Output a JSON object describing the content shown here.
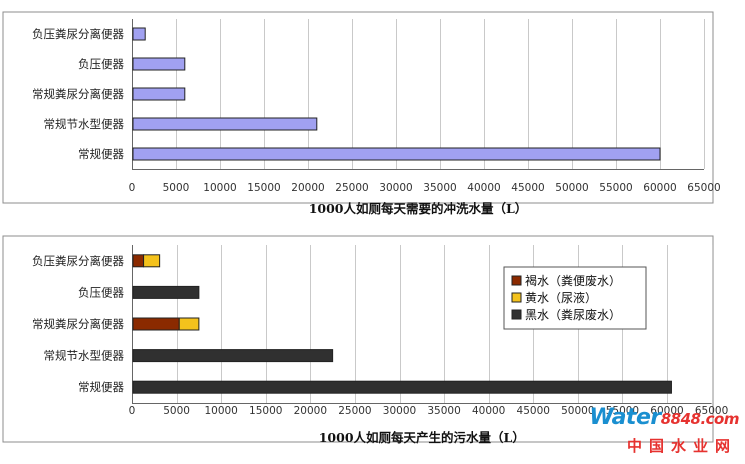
{
  "colors": {
    "bar_top": "#a1a1f1",
    "brown": "#8b2a00",
    "yellow": "#f4c21c",
    "black": "#303030",
    "frame": "#8c8c8c",
    "grid": "#c9c9c9"
  },
  "chart_data": [
    {
      "type": "bar",
      "orientation": "horizontal",
      "categories": [
        "负压粪尿分离便器",
        "负压便器",
        "常规粪尿分离便器",
        "常规节水型便器",
        "常规便器"
      ],
      "series": [
        {
          "values": [
            1500,
            6000,
            6000,
            21000,
            60000
          ]
        }
      ],
      "xlabel": "1000人如厕每天需要的冲洗水量（L）",
      "xlim": [
        0,
        65000
      ],
      "xticks": [
        0,
        5000,
        10000,
        15000,
        20000,
        25000,
        30000,
        35000,
        40000,
        45000,
        50000,
        55000,
        60000,
        65000
      ],
      "grid": true,
      "legend": "none"
    },
    {
      "type": "bar",
      "orientation": "horizontal",
      "stacked": true,
      "categories": [
        "负压粪尿分离便器",
        "负压便器",
        "常规粪尿分离便器",
        "常规节水型便器",
        "常规便器"
      ],
      "series": [
        {
          "name": "褐水（粪便废水）",
          "values": [
            1300,
            0,
            5300,
            0,
            0
          ]
        },
        {
          "name": "黄水（尿液）",
          "values": [
            1800,
            0,
            2200,
            0,
            0
          ]
        },
        {
          "name": "黑水（粪尿废水）",
          "values": [
            0,
            7500,
            0,
            22500,
            60500
          ]
        }
      ],
      "xlabel": "1000人如厕每天产生的污水量（L）",
      "xlim": [
        0,
        65000
      ],
      "xticks": [
        0,
        5000,
        10000,
        15000,
        20000,
        25000,
        30000,
        35000,
        40000,
        45000,
        50000,
        55000,
        60000,
        65000
      ],
      "grid": true,
      "legend": "right"
    }
  ],
  "watermark": {
    "brand_a": "Water",
    "brand_b": "8848",
    "brand_c": ".com",
    "site": "中国水业网"
  }
}
